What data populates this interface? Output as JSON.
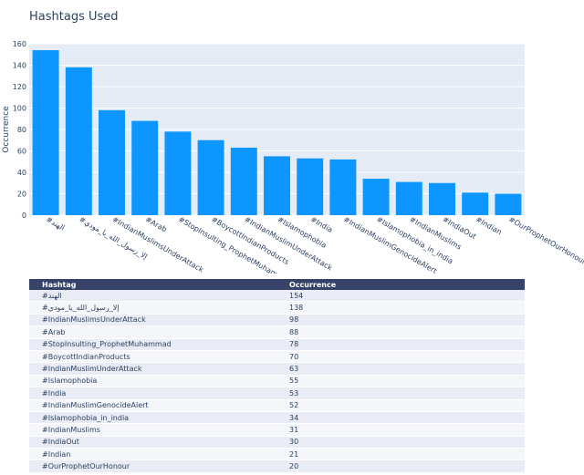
{
  "chart_data": {
    "type": "bar",
    "title": "Hashtags Used",
    "ylabel": "Occurrence",
    "xlabel": "",
    "ylim": [
      0,
      160
    ],
    "yticks": [
      0,
      20,
      40,
      60,
      80,
      100,
      120,
      140,
      160
    ],
    "grid": true,
    "bar_color": "#0d96ff",
    "categories": [
      "#الهند",
      "#إلا_رسول_الله_يا_مودي",
      "#IndianMuslimsUnderAttack",
      "#Arab",
      "#StopInsulting_ProphetMuhammad",
      "#BoycottIndianProducts",
      "#IndianMuslimUnderAttack",
      "#Islamophobia",
      "#India",
      "#IndianMuslimGenocideAlert",
      "#Islamophobia_in_india",
      "#IndianMuslims",
      "#IndiaOut",
      "#Indian",
      "#OurProphetOurHonour"
    ],
    "values": [
      154,
      138,
      98,
      88,
      78,
      70,
      63,
      55,
      53,
      52,
      34,
      31,
      30,
      21,
      20
    ]
  },
  "table": {
    "headers": [
      "Hashtag",
      "Occurrence"
    ]
  },
  "colors": {
    "plot_bg": "#e5ecf6",
    "text": "#2a3f5f",
    "table_header": "#374269"
  }
}
